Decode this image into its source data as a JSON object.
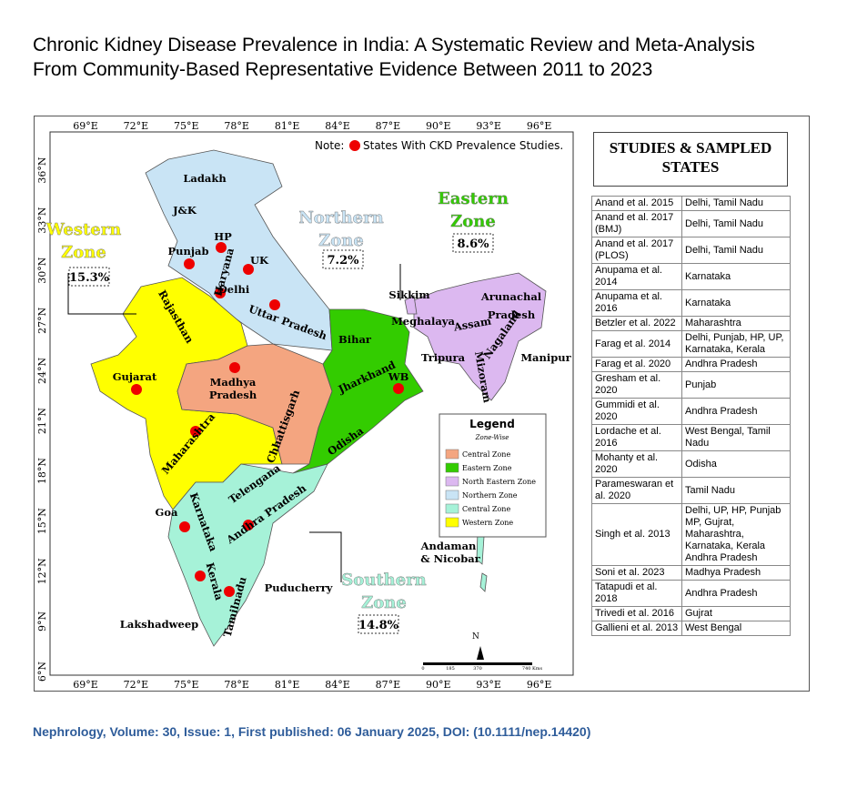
{
  "header": {
    "title_lines": [
      "Chronic Kidney Disease Prevalence in India: A Systematic Review and Meta-Analysis",
      "From Community-Based Representative Evidence Between 2011 to 2023"
    ]
  },
  "map": {
    "note": "Note:",
    "note_text": "States With CKD Prevalence Studies.",
    "longitudes": [
      "69°E",
      "72°E",
      "75°E",
      "78°E",
      "81°E",
      "84°E",
      "87°E",
      "90°E",
      "93°E",
      "96°E"
    ],
    "latitudes": [
      "36°N",
      "33°N",
      "30°N",
      "27°N",
      "24°N",
      "21°N",
      "18°N",
      "15°N",
      "12°N",
      "9°N",
      "6°N"
    ],
    "state_labels": [
      "Ladakh",
      "J&K",
      "HP",
      "Punjab",
      "Haryana",
      "Delhi",
      "UK",
      "Uttar Pradesh",
      "Rajasthan",
      "Gujarat",
      "Madhya",
      "Pradesh",
      "Maharashtra",
      "Chhattisgarh",
      "Bihar",
      "Jharkhand",
      "WB",
      "Odisha",
      "Sikkim",
      "Meghalaya",
      "Assam",
      "Arunachal",
      "Pradesh",
      "Nagaland",
      "Manipur",
      "Tripura",
      "Mizoram",
      "Telengana",
      "Andhra Pradesh",
      "Goa",
      "Karnataka",
      "Kerala",
      "Tamilnadu",
      "Puducherry",
      "Lakshadweep",
      "Andaman",
      "& Nicobar"
    ],
    "zones": [
      {
        "name_lines": [
          "Western",
          "Zone"
        ],
        "prevalence": "15.3%"
      },
      {
        "name_lines": [
          "Northern",
          "Zone"
        ],
        "prevalence": "7.2%"
      },
      {
        "name_lines": [
          "Eastern",
          "Zone"
        ],
        "prevalence": "8.6%"
      },
      {
        "name_lines": [
          "Southern",
          "Zone"
        ],
        "prevalence": "14.8%"
      }
    ],
    "legend": {
      "title": "Legend",
      "subtitle": "Zone-Wise",
      "items": [
        "Central Zone",
        "Eastern Zone",
        "North Eastern Zone",
        "Northern Zone",
        "Central Zone",
        "Western Zone"
      ]
    },
    "scale_labels": [
      "0",
      "185",
      "370",
      "740 Kms"
    ],
    "north": "N"
  },
  "table": {
    "title": "STUDIES & SAMPLED STATES",
    "rows": [
      [
        "Anand et al. 2015",
        "Delhi, Tamil Nadu"
      ],
      [
        "Anand et al. 2017 (BMJ)",
        "Delhi, Tamil Nadu"
      ],
      [
        "Anand et al. 2017 (PLOS)",
        "Delhi, Tamil Nadu"
      ],
      [
        "Anupama et al. 2014",
        "Karnataka"
      ],
      [
        "Anupama et al. 2016",
        "Karnataka"
      ],
      [
        "Betzler et al. 2022",
        "Maharashtra"
      ],
      [
        "Farag et al. 2014",
        "Delhi, Punjab, HP, UP, Karnataka, Kerala"
      ],
      [
        "Farag et al. 2020",
        "Andhra Pradesh"
      ],
      [
        "Gresham et al. 2020",
        "Punjab"
      ],
      [
        "Gummidi et al. 2020",
        "Andhra Pradesh"
      ],
      [
        "Lordache et al. 2016",
        "West Bengal, Tamil Nadu"
      ],
      [
        "Mohanty et al. 2020",
        "Odisha"
      ],
      [
        "Parameswaran et al. 2020",
        "Tamil Nadu"
      ],
      [
        "Singh et al. 2013",
        "Delhi, UP, HP, Punjab MP, Gujrat, Maharashtra, Karnataka, Kerala Andhra Pradesh"
      ],
      [
        "Soni et al. 2023",
        "Madhya Pradesh"
      ],
      [
        "Tatapudi et al. 2018",
        "Andhra Pradesh"
      ],
      [
        "Trivedi et al. 2016",
        "Gujrat"
      ],
      [
        "Gallieni et al. 2013",
        "West Bengal"
      ]
    ]
  },
  "footer": "Nephrology, Volume: 30, Issue: 1, First published: 06 January 2025, DOI: (10.1111/nep.14420)"
}
